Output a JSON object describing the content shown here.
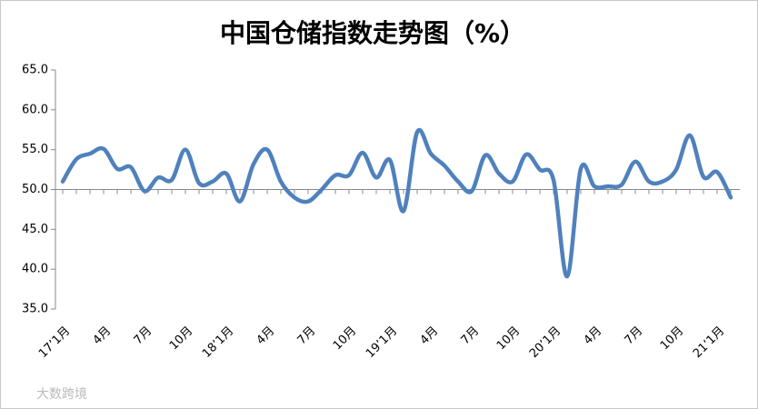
{
  "chart_data": {
    "type": "line",
    "title": "中国仓储指数走势图（%）",
    "categories": [
      "17’1月",
      null,
      null,
      "4月",
      null,
      null,
      "7月",
      null,
      null,
      "10月",
      null,
      null,
      "18’1月",
      null,
      null,
      "4月",
      null,
      null,
      "7月",
      null,
      null,
      "10月",
      null,
      null,
      "19’1月",
      null,
      null,
      "4月",
      null,
      null,
      "7月",
      null,
      null,
      "10月",
      null,
      null,
      "20’1月",
      null,
      null,
      "4月",
      null,
      null,
      "7月",
      null,
      null,
      "10月",
      null,
      null,
      "21’1月",
      null
    ],
    "series": [
      {
        "name": "中国仓储指数",
        "color": "#4f81bd",
        "values": [
          51.0,
          53.8,
          54.5,
          55.1,
          52.6,
          52.8,
          49.8,
          51.5,
          51.2,
          55.0,
          50.8,
          51.0,
          52.0,
          48.5,
          53.2,
          55.0,
          51.0,
          49.0,
          48.5,
          50.0,
          51.8,
          51.8,
          54.6,
          51.5,
          53.7,
          47.3,
          57.2,
          54.5,
          53.0,
          51.0,
          49.8,
          54.3,
          52.0,
          51.0,
          54.4,
          52.5,
          51.2,
          39.1,
          52.6,
          50.4,
          50.4,
          50.6,
          53.5,
          51.0,
          51.0,
          52.5,
          56.8,
          51.6,
          52.2,
          49.0
        ]
      }
    ],
    "ylim": [
      35,
      65
    ],
    "xaxis_at": 50,
    "yticks": [
      {
        "value": 35,
        "label": "35.0"
      },
      {
        "value": 40,
        "label": "40.0"
      },
      {
        "value": 45,
        "label": "45.0"
      },
      {
        "value": 50,
        "label": "50.0"
      },
      {
        "value": 55,
        "label": "55.0"
      },
      {
        "value": 60,
        "label": "60.0"
      },
      {
        "value": 65,
        "label": "65.0"
      }
    ],
    "grid": false
  },
  "watermark": "大数跨境"
}
